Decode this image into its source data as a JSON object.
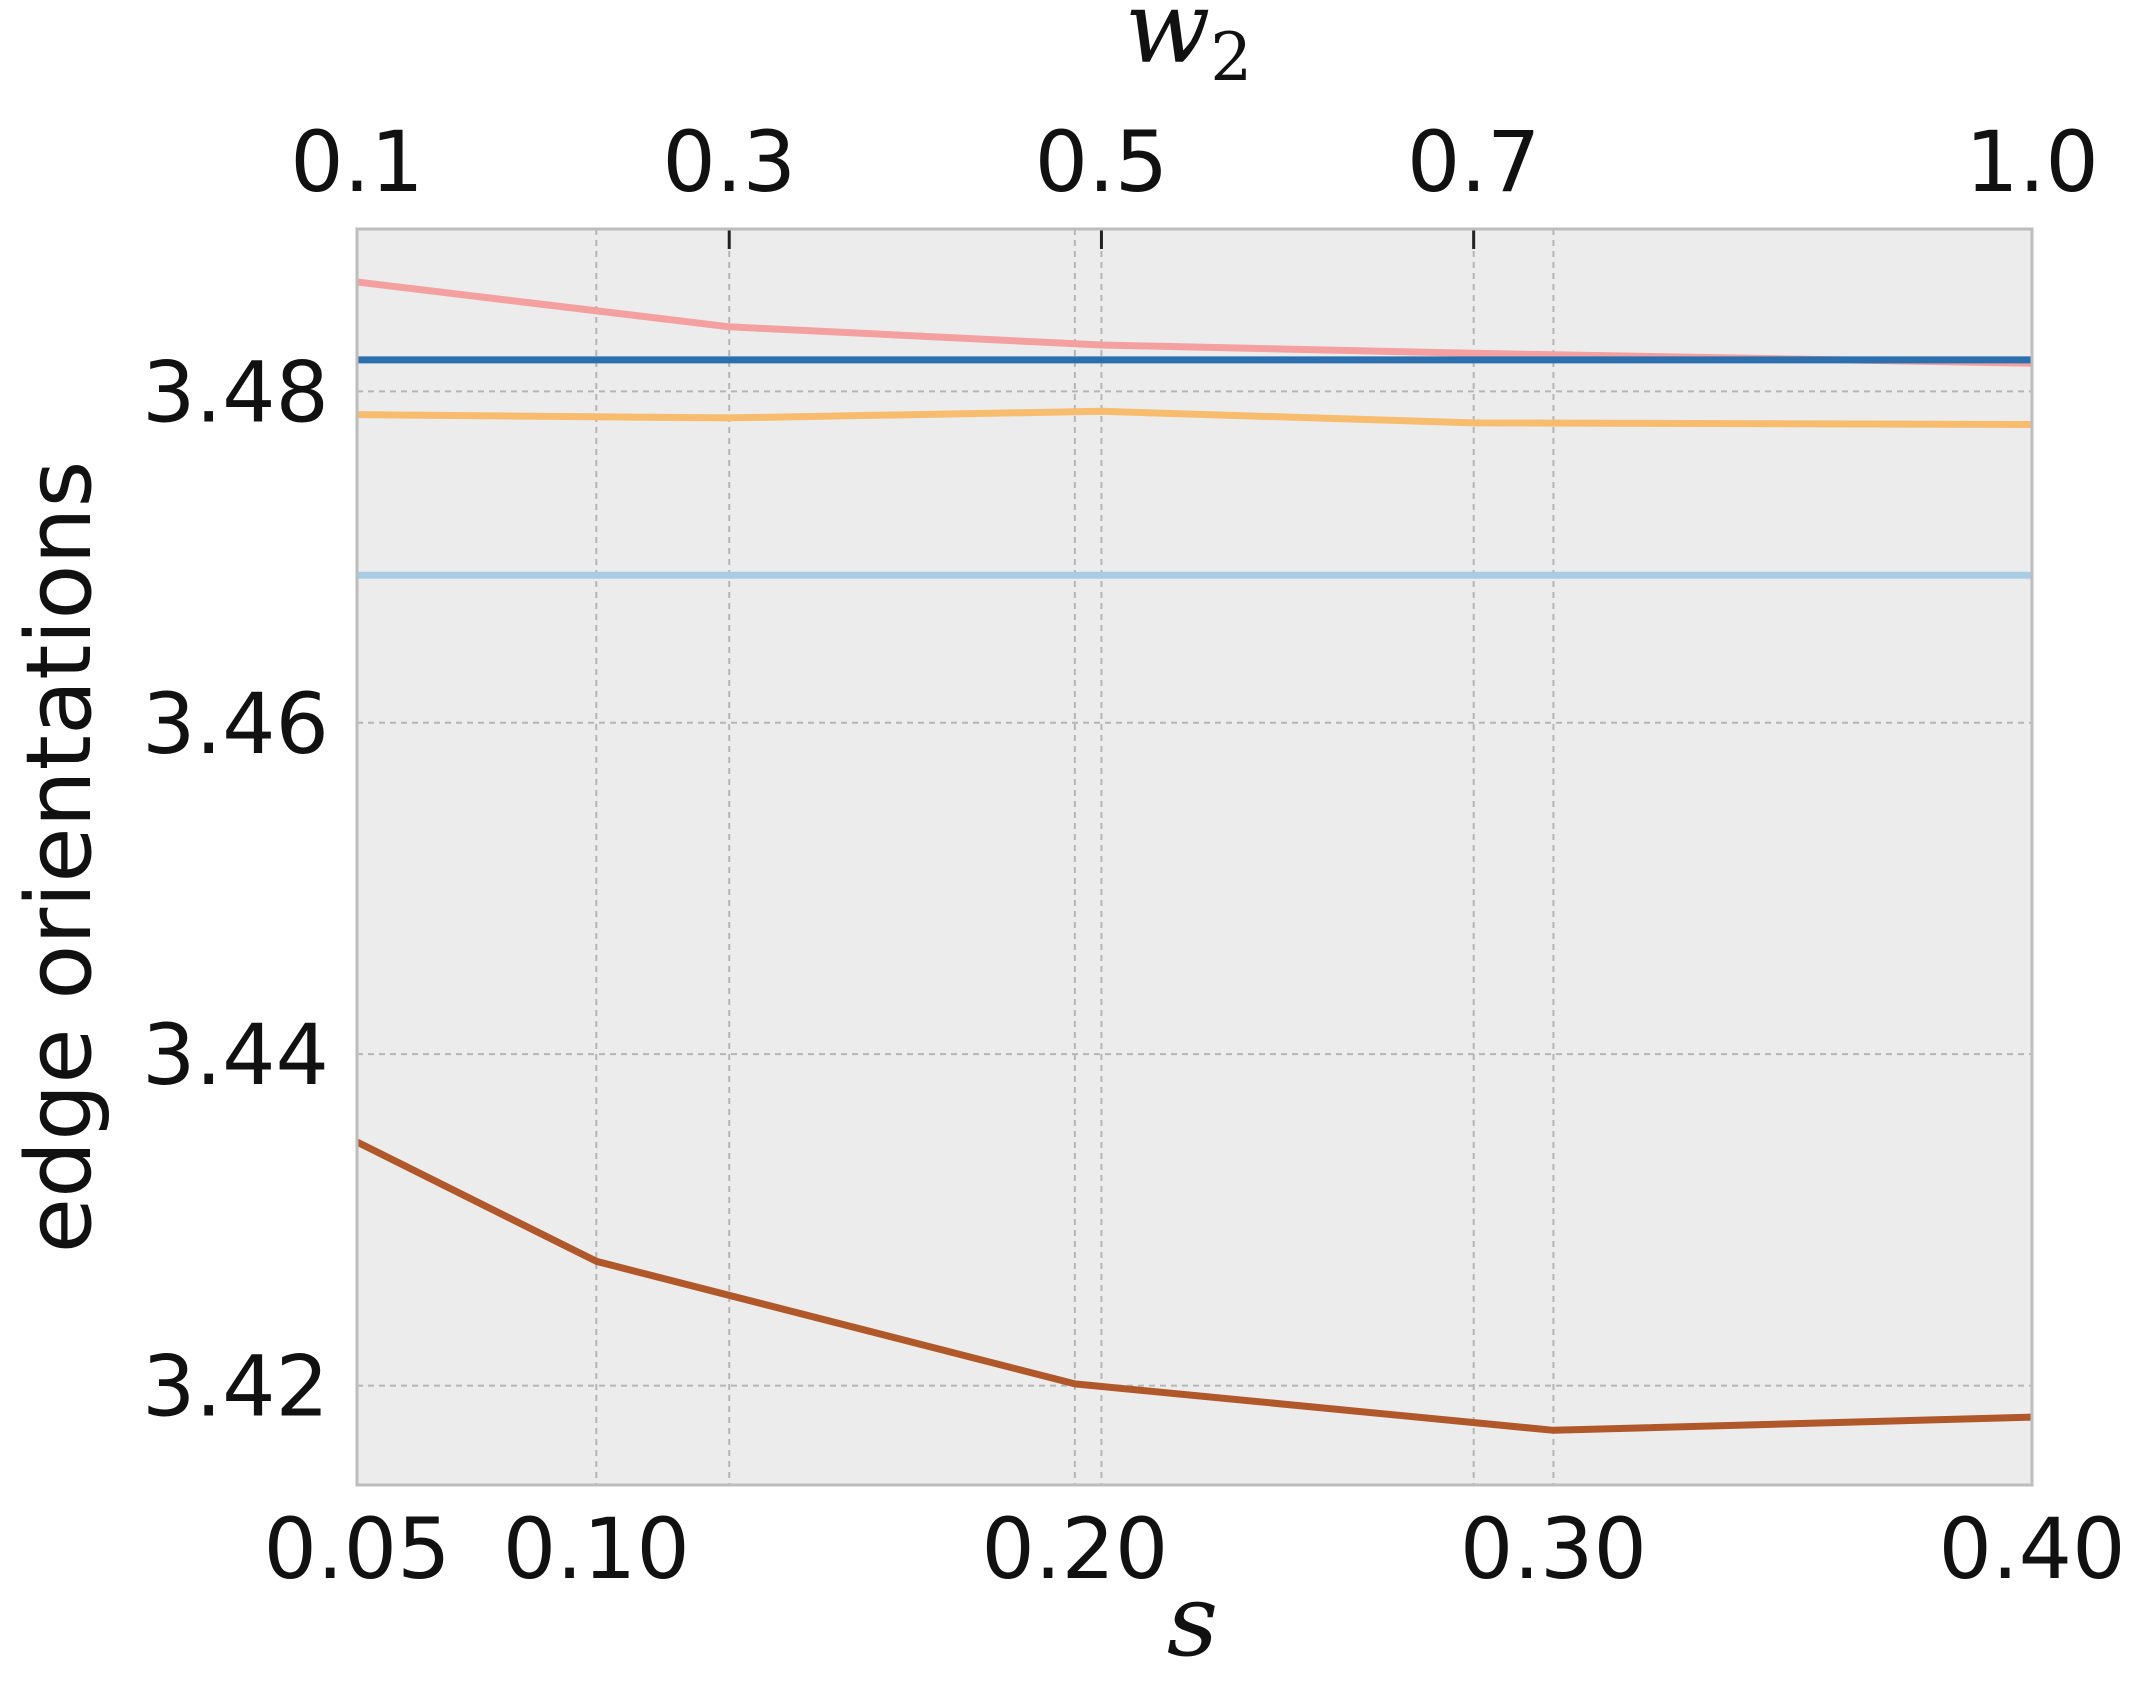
{
  "chart_data": {
    "type": "line",
    "ylabel": "edge orientations",
    "ylim": [
      3.414,
      3.4898
    ],
    "y_ticks": [
      "3.42",
      "3.44",
      "3.46",
      "3.48"
    ],
    "y_tick_values": [
      3.42,
      3.44,
      3.46,
      3.48
    ],
    "bottom_axis": {
      "label": "s",
      "range": [
        0.05,
        0.4
      ],
      "ticks": [
        "0.05",
        "0.10",
        "0.20",
        "0.30",
        "0.40"
      ],
      "tick_values": [
        0.05,
        0.1,
        0.2,
        0.3,
        0.4
      ]
    },
    "top_axis": {
      "label_base": "w",
      "label_sub": "2",
      "range": [
        0.1,
        1.0
      ],
      "ticks": [
        "0.1",
        "0.3",
        "0.5",
        "0.7",
        "1.0"
      ],
      "tick_values": [
        0.1,
        0.3,
        0.5,
        0.7,
        1.0
      ]
    },
    "grid": true,
    "background": "#ececec",
    "series": [
      {
        "color": "#f4a0a0",
        "axis": "top",
        "x": [
          0.1,
          0.3,
          0.5,
          0.7,
          1.0
        ],
        "y": [
          3.4866,
          3.4839,
          3.4828,
          3.4823,
          3.4817
        ]
      },
      {
        "color": "#2c6faf",
        "axis": "top",
        "x": [
          0.1,
          0.3,
          0.5,
          0.7,
          1.0
        ],
        "y": [
          3.4819,
          3.4819,
          3.4819,
          3.4819,
          3.4819
        ]
      },
      {
        "color": "#f8bc6e",
        "axis": "top",
        "x": [
          0.1,
          0.3,
          0.5,
          0.7,
          1.0
        ],
        "y": [
          3.4786,
          3.4784,
          3.4788,
          3.4781,
          3.478
        ]
      },
      {
        "color": "#a8cce4",
        "axis": "top",
        "x": [
          0.1,
          0.3,
          0.5,
          0.7,
          1.0
        ],
        "y": [
          3.4689,
          3.4689,
          3.4689,
          3.4689,
          3.4689
        ]
      },
      {
        "color": "#b0582a",
        "axis": "bottom",
        "x": [
          0.05,
          0.1,
          0.2,
          0.3,
          0.4
        ],
        "y": [
          3.4347,
          3.4275,
          3.4201,
          3.4173,
          3.4181
        ]
      }
    ]
  }
}
